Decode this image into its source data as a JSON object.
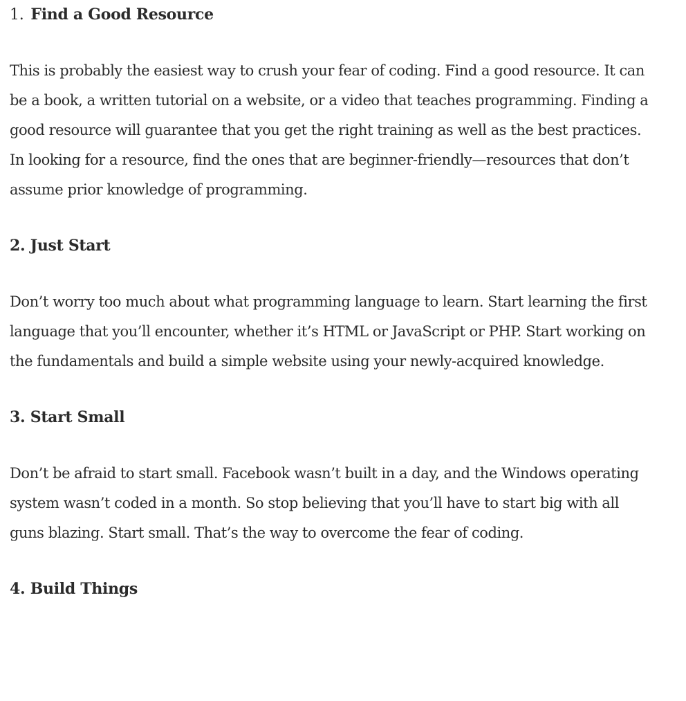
{
  "sections": [
    {
      "number": "1.",
      "title": "Find a Good Resource",
      "body": "This is probably the easiest way to crush your fear of coding. Find a good resource. It can be a book, a written tutorial on a website, or a video that teaches programming. Finding a good resource will guarantee that you get the right training as well as the best practices. In looking for a resource, find the ones that are beginner-friendly—resources that don’t assume prior knowledge of programming."
    },
    {
      "number": "2.",
      "title": "Just Start",
      "body": "Don’t worry too much about what programming language to learn. Start learning the first language that you’ll encounter, whether it’s HTML or JavaScript or PHP. Start working on the fundamentals and build a simple website using your newly-acquired knowledge."
    },
    {
      "number": "3.",
      "title": "Start Small",
      "body": "Don’t be afraid to start small. Facebook wasn’t built in a day, and the Windows operating system wasn’t coded in a month. So stop believing that you’ll have to start big with all guns blazing. Start small. That’s the way to overcome the fear of coding."
    },
    {
      "number": "4.",
      "title": "Build Things"
    }
  ]
}
